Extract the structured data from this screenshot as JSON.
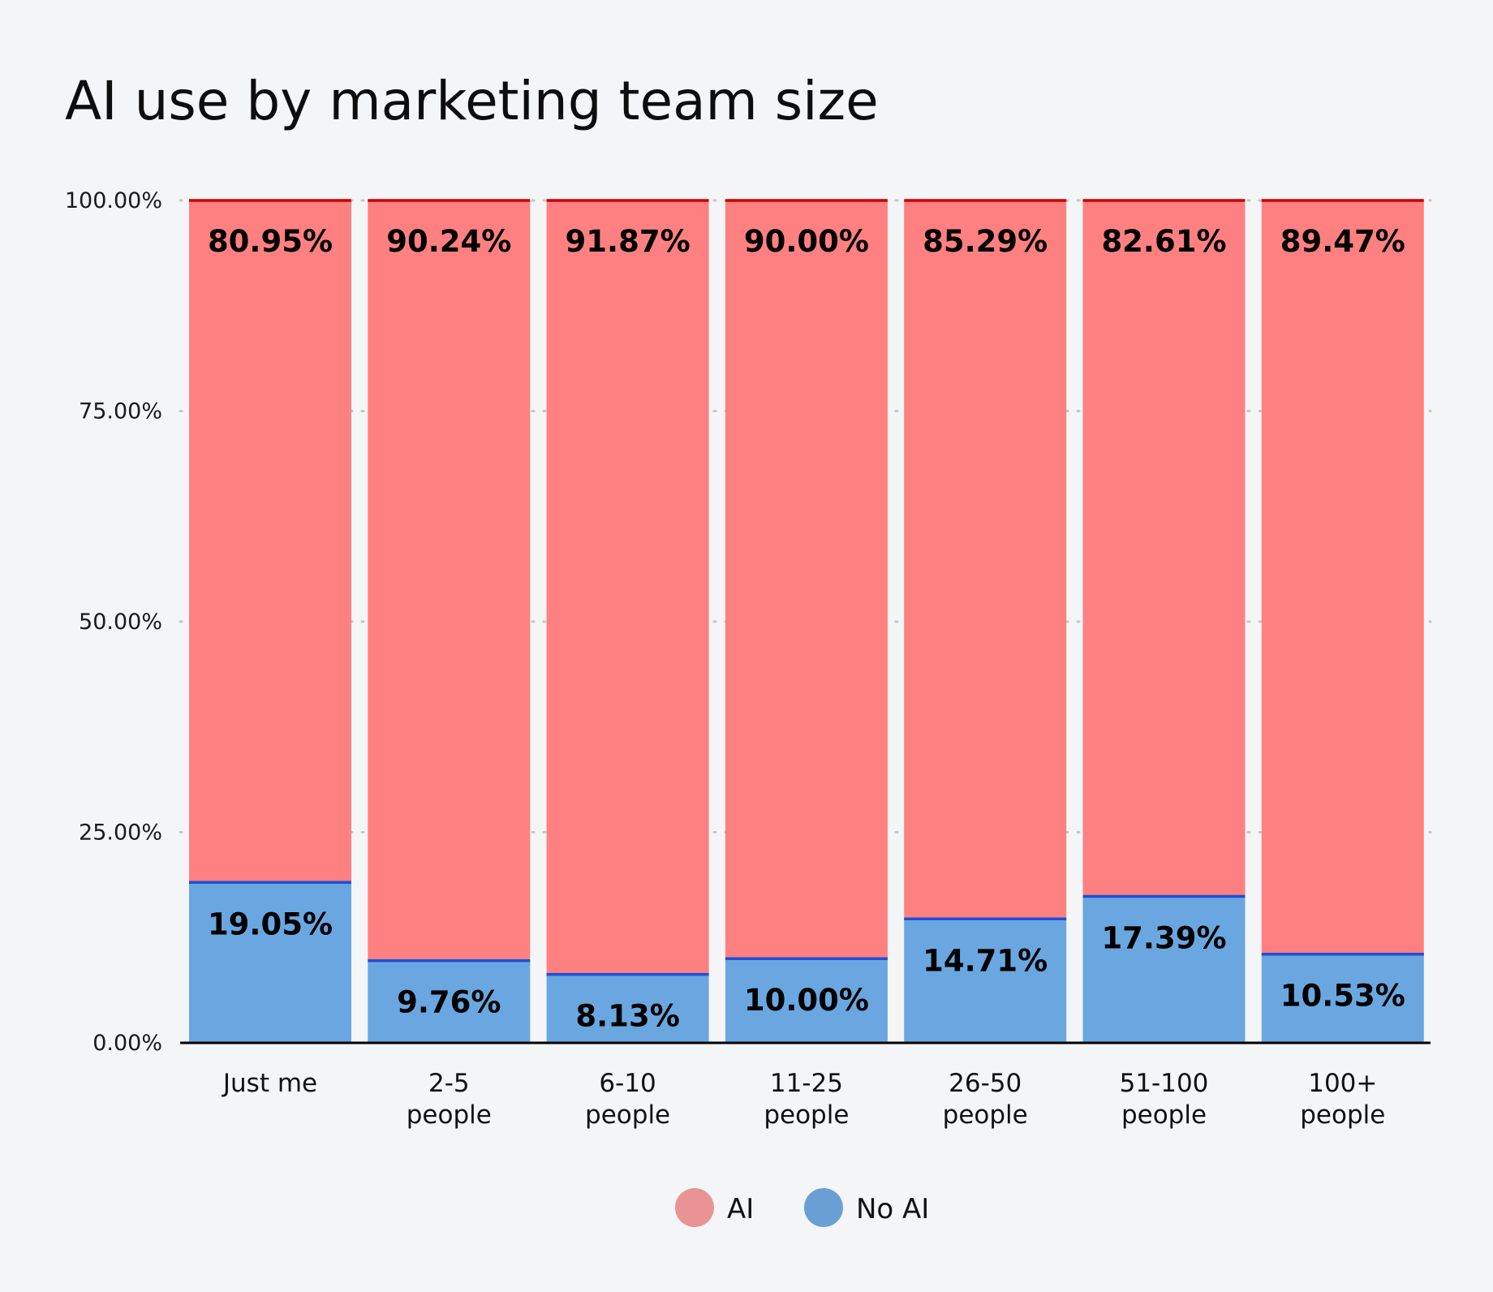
{
  "chart_data": {
    "type": "bar",
    "stacked": true,
    "title": "AI use by marketing team size",
    "categories": [
      [
        "Just me"
      ],
      [
        "2-5",
        "people"
      ],
      [
        "6-10",
        "people"
      ],
      [
        "11-25",
        "people"
      ],
      [
        "26-50",
        "people"
      ],
      [
        "51-100",
        "people"
      ],
      [
        "100+",
        "people"
      ]
    ],
    "series": [
      {
        "name": "No AI",
        "color": "#6aa7e0",
        "edge_color": "#1f4fd6",
        "values": [
          19.05,
          9.76,
          8.13,
          10.0,
          14.71,
          17.39,
          10.53
        ],
        "labels": [
          "19.05%",
          "9.76%",
          "8.13%",
          "10.00%",
          "14.71%",
          "17.39%",
          "10.53%"
        ]
      },
      {
        "name": "AI",
        "color": "#ff8080",
        "edge_color": "#cc0000",
        "values": [
          80.95,
          90.24,
          91.87,
          90.0,
          85.29,
          82.61,
          89.47
        ],
        "labels": [
          "80.95%",
          "90.24%",
          "91.87%",
          "90.00%",
          "85.29%",
          "82.61%",
          "89.47%"
        ]
      }
    ],
    "ylim": [
      0,
      100
    ],
    "yticks": [
      {
        "value": 0,
        "label": "0.00%"
      },
      {
        "value": 25,
        "label": "25.00%"
      },
      {
        "value": 50,
        "label": "50.00%"
      },
      {
        "value": 75,
        "label": "75.00%"
      },
      {
        "value": 100,
        "label": "100.00%"
      }
    ],
    "xlabel": "",
    "ylabel": "",
    "grid": true,
    "legend": {
      "position": "bottom-center",
      "items": [
        {
          "label": "AI",
          "color": "#e89494"
        },
        {
          "label": "No AI",
          "color": "#6a9fd4"
        }
      ]
    }
  }
}
